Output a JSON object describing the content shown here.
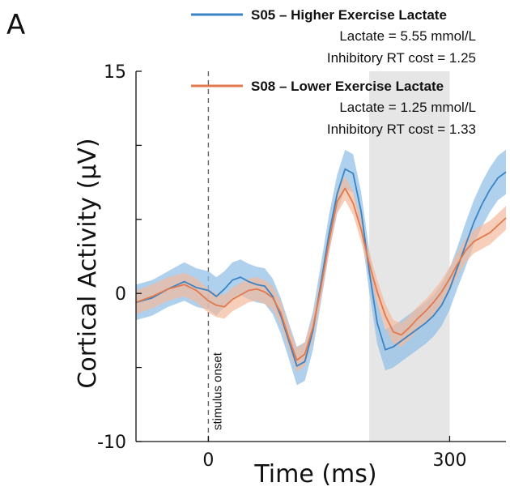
{
  "panel_label": "A",
  "chart_data": {
    "type": "line",
    "xlabel": "Time (ms)",
    "ylabel": "Cortical Activity (μV)",
    "xlim": [
      -90,
      370
    ],
    "ylim": [
      -10,
      15
    ],
    "xticks": [
      0,
      300
    ],
    "xtick_labels": [
      "0",
      "300"
    ],
    "yticks": [
      -10,
      0,
      15
    ],
    "ytick_labels": [
      "-10",
      "0",
      "15"
    ],
    "ytick_minor": [
      -5,
      5,
      10
    ],
    "stimulus_line_x": 0,
    "stimulus_label": "stimulus onset",
    "shaded_window": [
      200,
      300
    ],
    "legend_position": "top-right",
    "series": [
      {
        "name": "S05 – Higher Exercise Lactate",
        "lines": [
          "Lactate = 5.55 mmol/L",
          "Inhibitory RT cost = 1.25"
        ],
        "color": "#3a83c4",
        "band_color": "#8dbde6",
        "x": [
          -90,
          -70,
          -50,
          -30,
          -15,
          0,
          10,
          20,
          30,
          40,
          50,
          60,
          70,
          80,
          90,
          100,
          110,
          120,
          130,
          140,
          150,
          160,
          170,
          180,
          190,
          200,
          210,
          220,
          230,
          240,
          250,
          260,
          270,
          280,
          290,
          300,
          310,
          320,
          330,
          340,
          350,
          360,
          370
        ],
        "y": [
          -0.6,
          -0.3,
          0.3,
          0.8,
          0.4,
          0.2,
          -0.2,
          0.3,
          0.9,
          1.1,
          0.8,
          0.6,
          0.5,
          -0.2,
          -1.5,
          -3.2,
          -4.9,
          -4.6,
          -2.5,
          0.7,
          4.0,
          6.7,
          8.4,
          8.1,
          5.5,
          1.5,
          -2.0,
          -3.8,
          -3.6,
          -3.2,
          -2.8,
          -2.4,
          -2.0,
          -1.5,
          -0.8,
          0.3,
          1.8,
          3.3,
          4.8,
          6.0,
          7.0,
          7.8,
          8.2
        ],
        "band": [
          1.2,
          1.2,
          1.2,
          1.3,
          1.3,
          1.3,
          1.3,
          1.2,
          1.2,
          1.2,
          1.2,
          1.2,
          1.2,
          1.2,
          1.2,
          1.2,
          1.3,
          1.3,
          1.3,
          1.3,
          1.3,
          1.3,
          1.3,
          1.3,
          1.3,
          1.4,
          1.4,
          1.4,
          1.4,
          1.4,
          1.4,
          1.4,
          1.4,
          1.4,
          1.4,
          1.4,
          1.4,
          1.5,
          1.5,
          1.5,
          1.5,
          1.5,
          1.5
        ]
      },
      {
        "name": "S08 – Lower Exercise Lactate",
        "lines": [
          "Lactate = 1.25 mmol/L",
          "Inhibitory RT cost = 1.33"
        ],
        "color": "#e07a4e",
        "band_color": "#f3b99d",
        "x": [
          -90,
          -70,
          -50,
          -30,
          -15,
          0,
          10,
          20,
          30,
          40,
          50,
          60,
          70,
          80,
          90,
          100,
          110,
          120,
          130,
          140,
          150,
          160,
          170,
          180,
          190,
          200,
          210,
          220,
          230,
          240,
          250,
          260,
          270,
          280,
          290,
          300,
          310,
          320,
          330,
          340,
          350,
          360,
          370
        ],
        "y": [
          -0.6,
          -0.2,
          0.3,
          0.6,
          0.2,
          -0.5,
          -0.8,
          -0.9,
          -0.4,
          -0.1,
          0.2,
          0.3,
          0.1,
          -0.3,
          -1.3,
          -3.0,
          -4.5,
          -4.1,
          -2.3,
          0.4,
          3.5,
          6.2,
          7.1,
          6.1,
          4.3,
          2.0,
          0.1,
          -1.5,
          -2.6,
          -2.8,
          -2.3,
          -1.7,
          -1.2,
          -0.6,
          0.1,
          1.0,
          2.0,
          2.9,
          3.5,
          3.8,
          4.1,
          4.6,
          5.1
        ],
        "band": [
          0.8,
          0.8,
          0.8,
          0.8,
          0.8,
          0.8,
          0.8,
          0.8,
          0.8,
          0.8,
          0.8,
          0.8,
          0.8,
          0.8,
          0.8,
          0.8,
          0.8,
          0.8,
          0.8,
          0.8,
          0.8,
          0.8,
          0.8,
          0.8,
          0.8,
          0.8,
          0.8,
          0.8,
          0.8,
          0.8,
          0.8,
          0.8,
          0.8,
          0.8,
          0.8,
          0.8,
          0.8,
          0.8,
          0.8,
          0.8,
          0.8,
          0.8,
          0.8
        ]
      }
    ]
  }
}
